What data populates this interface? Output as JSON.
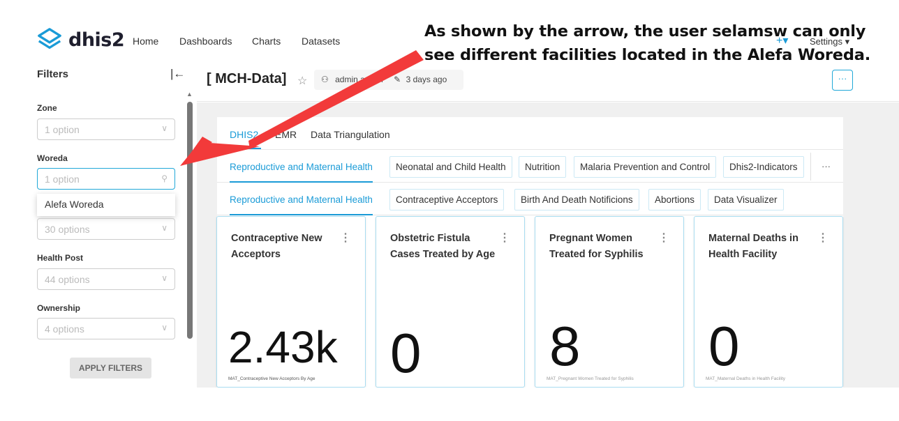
{
  "annotation": "As shown by the arrow, the user selamsw can only see different facilities located in the Alefa Woreda.",
  "brand": {
    "name": "dhis2",
    "accent": "#1a9bd7"
  },
  "nav": {
    "items": [
      "Home",
      "Dashboards",
      "Charts",
      "Datasets"
    ],
    "plus": "+▾",
    "settings": "Settings ▾"
  },
  "sidebar": {
    "title": "Filters",
    "collapse_icon": "|←",
    "filters": [
      {
        "label": "Zone",
        "placeholder": "1 option"
      },
      {
        "label": "Woreda",
        "placeholder": "1 option"
      },
      {
        "label": "",
        "placeholder": "30 options"
      },
      {
        "label": "Health Post",
        "placeholder": "44 options"
      },
      {
        "label": "Ownership",
        "placeholder": "4 options"
      }
    ],
    "dropdown_option": "Alefa Woreda",
    "apply_label": "APPLY FILTERS"
  },
  "header": {
    "title": "[ MCH-Data]",
    "owner": "admin admin",
    "modified": "3 days ago",
    "more": "···"
  },
  "tabs": [
    "DHIS2",
    "EMR",
    "Data Triangulation"
  ],
  "subtabs": [
    "Reproductive and Maternal Health",
    "Neonatal and Child Health",
    "Nutrition",
    "Malaria Prevention and Control",
    "Dhis2-Indicators"
  ],
  "subsubtabs": [
    "Reproductive and Maternal Health",
    "Contraceptive Acceptors",
    "Birth And Death Notificions",
    "Abortions",
    "Data Visualizer"
  ],
  "more": "···",
  "cards": [
    {
      "title": "Contraceptive New Acceptors",
      "value": "2.43k",
      "subtitle": "MAT_Contraceptive New Acceptors By Age"
    },
    {
      "title": "Obstetric Fistula Cases Treated by Age",
      "value": "0",
      "subtitle": ""
    },
    {
      "title": "Pregnant Women Treated for Syphilis",
      "value": "8",
      "subtitle": "MAT_Pregnant Women Treated for Syphilis"
    },
    {
      "title": "Maternal Deaths in Health Facility",
      "value": "0",
      "subtitle": "MAT_Maternal Deaths in Health Facility"
    }
  ]
}
